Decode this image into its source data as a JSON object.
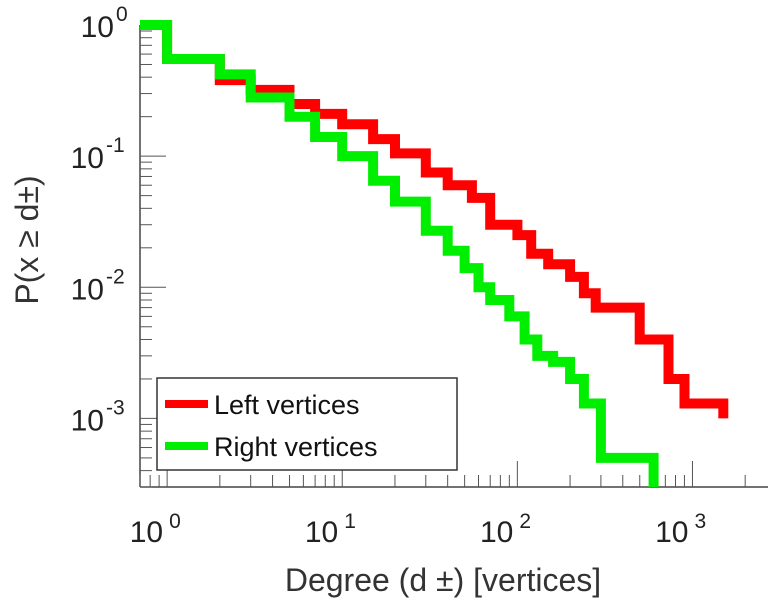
{
  "chart_data": {
    "type": "line",
    "scale": {
      "x": "log",
      "y": "log"
    },
    "xlim": [
      0.7,
      2700
    ],
    "ylim": [
      0.0003,
      1.0
    ],
    "xlabel": "Degree (d ±) [vertices]",
    "ylabel": "P(x ≥ d±)",
    "x_ticks": [
      {
        "value": 1,
        "base": "10",
        "exp": "0"
      },
      {
        "value": 10,
        "base": "10",
        "exp": "1"
      },
      {
        "value": 100,
        "base": "10",
        "exp": "2"
      },
      {
        "value": 1000,
        "base": "10",
        "exp": "3"
      }
    ],
    "y_ticks": [
      {
        "value": 1,
        "base": "10",
        "exp": "0"
      },
      {
        "value": 0.1,
        "base": "10",
        "exp": "-1"
      },
      {
        "value": 0.01,
        "base": "10",
        "exp": "-2"
      },
      {
        "value": 0.001,
        "base": "10",
        "exp": "-3"
      }
    ],
    "legend": {
      "position": "bottom-left"
    },
    "grid": false,
    "series": [
      {
        "name": "Left vertices",
        "color": "#ff0000",
        "points": [
          [
            0.7,
            1.0
          ],
          [
            1.0,
            1.0
          ],
          [
            1.0,
            0.55
          ],
          [
            2.0,
            0.55
          ],
          [
            2.0,
            0.38
          ],
          [
            3.0,
            0.38
          ],
          [
            3.0,
            0.32
          ],
          [
            4.0,
            0.32
          ],
          [
            5,
            0.25
          ],
          [
            7,
            0.21
          ],
          [
            10,
            0.175
          ],
          [
            15,
            0.135
          ],
          [
            20,
            0.105
          ],
          [
            30,
            0.075
          ],
          [
            40,
            0.06
          ],
          [
            55,
            0.048
          ],
          [
            70,
            0.03
          ],
          [
            100,
            0.025
          ],
          [
            120,
            0.018
          ],
          [
            150,
            0.015
          ],
          [
            200,
            0.012
          ],
          [
            240,
            0.009
          ],
          [
            280,
            0.007
          ],
          [
            400,
            0.007
          ],
          [
            500,
            0.004
          ],
          [
            730,
            0.004
          ],
          [
            730,
            0.002
          ],
          [
            900,
            0.002
          ],
          [
            900,
            0.0013
          ],
          [
            1500,
            0.0013
          ],
          [
            1500,
            0.001
          ]
        ]
      },
      {
        "name": "Right vertices",
        "color": "#00ee00",
        "points": [
          [
            0.7,
            1.0
          ],
          [
            1.0,
            1.0
          ],
          [
            1.0,
            0.55
          ],
          [
            2.0,
            0.55
          ],
          [
            2.0,
            0.42
          ],
          [
            3.0,
            0.42
          ],
          [
            3.0,
            0.28
          ],
          [
            4.0,
            0.28
          ],
          [
            5,
            0.2
          ],
          [
            7,
            0.14
          ],
          [
            10,
            0.1
          ],
          [
            15,
            0.065
          ],
          [
            20,
            0.045
          ],
          [
            30,
            0.027
          ],
          [
            40,
            0.019
          ],
          [
            50,
            0.014
          ],
          [
            60,
            0.01
          ],
          [
            70,
            0.008
          ],
          [
            90,
            0.006
          ],
          [
            110,
            0.004
          ],
          [
            130,
            0.003
          ],
          [
            160,
            0.0027
          ],
          [
            200,
            0.002
          ],
          [
            240,
            0.0013
          ],
          [
            300,
            0.0008
          ],
          [
            300,
            0.0005
          ],
          [
            600,
            0.0005
          ],
          [
            600,
            0.0003
          ]
        ]
      }
    ]
  }
}
